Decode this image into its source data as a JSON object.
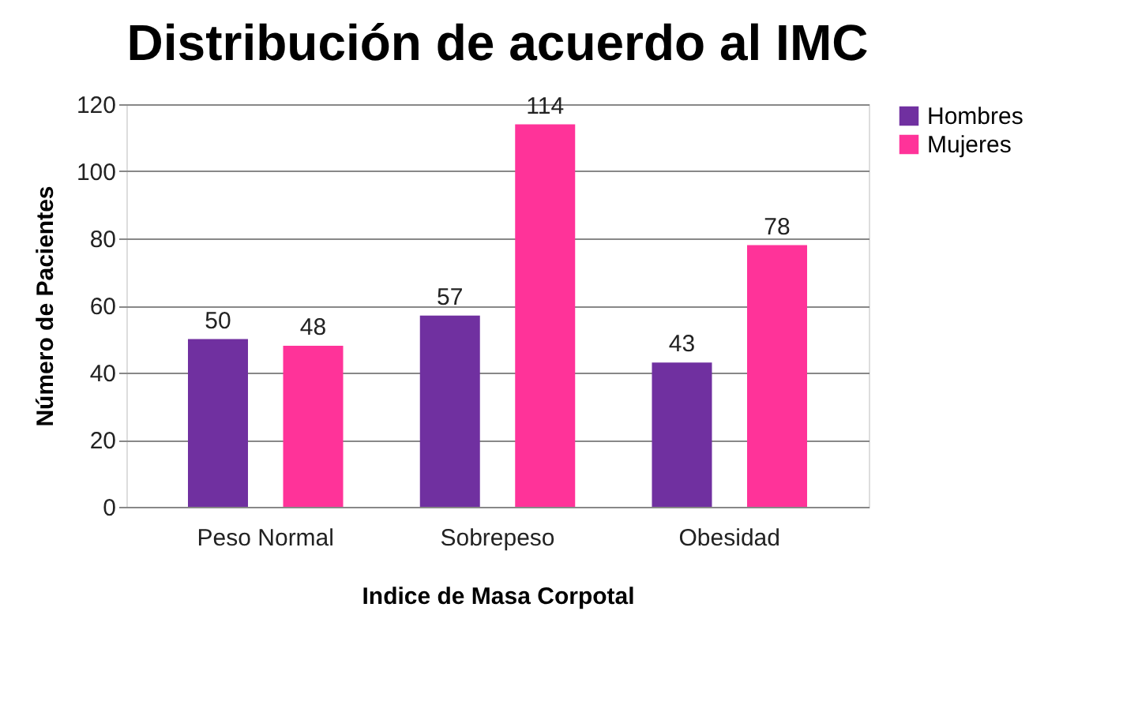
{
  "chart_data": {
    "type": "bar",
    "title": "Distribución de acuerdo al IMC",
    "xlabel": "Indice de Masa Corpotal",
    "ylabel": "Número de Pacientes",
    "categories": [
      "Peso Normal",
      "Sobrepeso",
      "Obesidad"
    ],
    "series": [
      {
        "name": "Hombres",
        "color": "#7030a0",
        "values": [
          50,
          57,
          43
        ]
      },
      {
        "name": "Mujeres",
        "color": "#ff3399",
        "values": [
          48,
          114,
          78
        ]
      }
    ],
    "ylim": [
      0,
      120
    ],
    "yticks": [
      0,
      20,
      40,
      60,
      80,
      100,
      120
    ],
    "grid": "y",
    "legend": "right",
    "data_labels": true
  }
}
